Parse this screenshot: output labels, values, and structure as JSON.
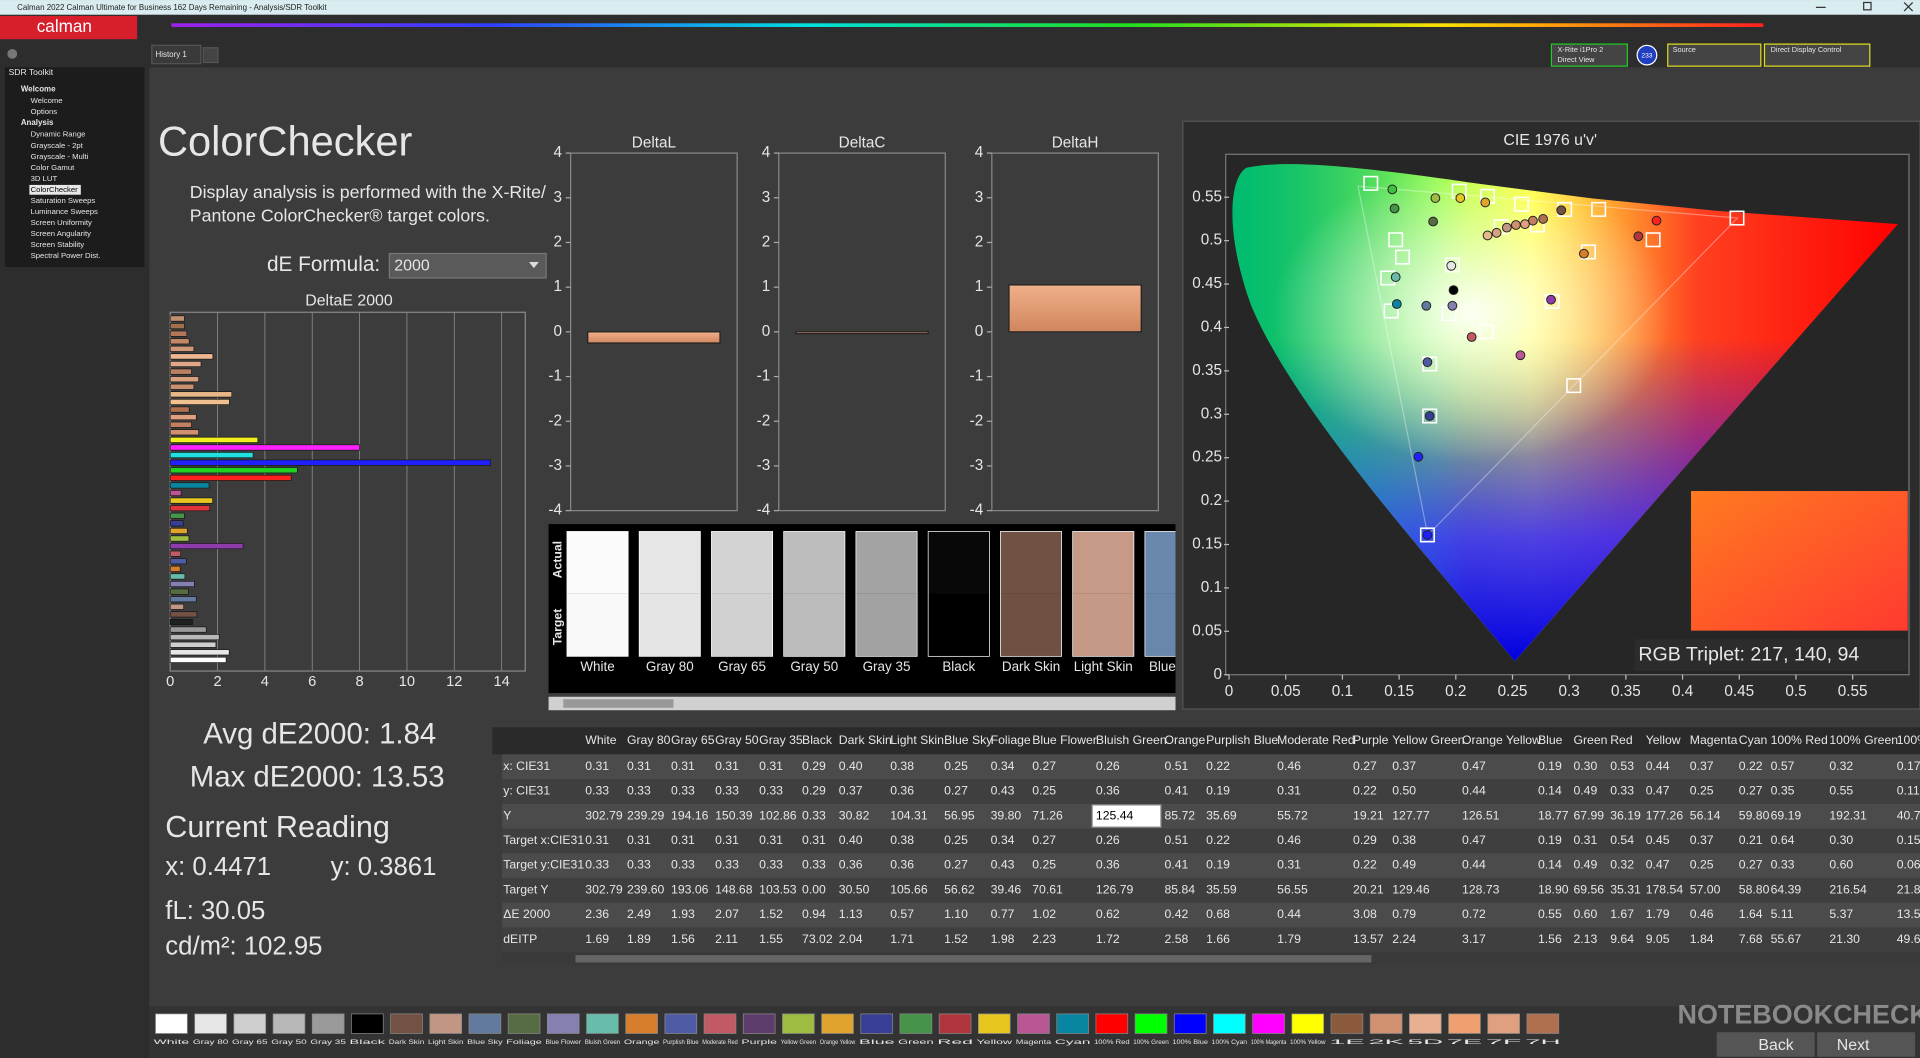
{
  "window": {
    "title": "Calman 2022 Calman Ultimate for Business 162 Days Remaining - Analysis/SDR Toolkit",
    "logo": "calman",
    "tab": "History 1"
  },
  "devices": {
    "meter": "X-Rite i1Pro 2",
    "meter_mode": "Direct View",
    "badge": "233",
    "source": "Source",
    "display": "Direct Display Control"
  },
  "sidebar": {
    "title": "SDR Toolkit",
    "groups": [
      {
        "title": "Welcome",
        "items": [
          "Welcome",
          "Options"
        ]
      },
      {
        "title": "Analysis",
        "items": [
          "Dynamic Range",
          "Grayscale - 2pt",
          "Grayscale - Multi",
          "Color Gamut",
          "3D LUT",
          "ColorChecker",
          "Saturation Sweeps",
          "Luminance Sweeps",
          "Screen Uniformity",
          "Screen Angularity",
          "Screen Stability",
          "Spectral Power Dist."
        ]
      }
    ],
    "selected": [
      1,
      5
    ]
  },
  "header": {
    "title": "ColorChecker",
    "description": [
      "Display analysis is performed with the X-Rite/",
      "Pantone ColorChecker® target colors."
    ],
    "formula_label": "dE Formula:",
    "formula_value": "2000"
  },
  "deltae_chart": {
    "type": "hbar",
    "title": "DeltaE 2000",
    "xlim": [
      0,
      15
    ],
    "xticks": [
      0,
      2,
      4,
      6,
      8,
      10,
      12,
      14
    ],
    "values": [
      2.36,
      2.49,
      1.93,
      2.07,
      1.52,
      0.94,
      1.13,
      0.57,
      1.1,
      0.77,
      1.02,
      0.62,
      0.42,
      0.68,
      0.44,
      3.08,
      0.79,
      0.72,
      0.55,
      0.6,
      1.67,
      1.79,
      0.46,
      1.64,
      5.11,
      5.37,
      13.53,
      3.5,
      8.0,
      3.7,
      1.2,
      0.9,
      1.1,
      0.8,
      2.5,
      2.6,
      1.0,
      1.2,
      0.9,
      1.3,
      1.8,
      1.0,
      0.8,
      0.7,
      0.6,
      0.6
    ],
    "colors": [
      "#ffffff",
      "#e6e6e6",
      "#cfcfcf",
      "#b8b8b8",
      "#9a9a9a",
      "#202020",
      "#735244",
      "#c29682",
      "#627a9d",
      "#576c43",
      "#8580b1",
      "#67bdaa",
      "#d67e2c",
      "#505ba6",
      "#c15a63",
      "#8e3cac",
      "#9dbc40",
      "#e0a32e",
      "#383d96",
      "#469449",
      "#df363c",
      "#e7c71f",
      "#bb5695",
      "#0885a1",
      "#ff2020",
      "#20d020",
      "#2020ff",
      "#20e0e0",
      "#ff20ff",
      "#f0f020",
      "#d09070",
      "#c08060",
      "#e0a080",
      "#b07050",
      "#f0c090",
      "#e8b888",
      "#c89070",
      "#d8a080",
      "#b88060",
      "#e0a888",
      "#f0b890",
      "#d09878",
      "#c08868",
      "#b07858",
      "#a07050",
      "#c09070"
    ]
  },
  "delta_charts": {
    "type": "bar",
    "ylim": [
      -4,
      4
    ],
    "yticks": [
      -4,
      -3,
      -2,
      -1,
      0,
      1,
      2,
      3,
      4
    ],
    "color": "#e29a72",
    "charts": [
      {
        "title": "DeltaL",
        "value": -0.25
      },
      {
        "title": "DeltaC",
        "value": -0.04
      },
      {
        "title": "DeltaH",
        "value": 1.05
      }
    ]
  },
  "swatches": {
    "row_labels": [
      "Actual",
      "Target"
    ],
    "items": [
      {
        "name": "White",
        "actual": "#fbfbfb",
        "target": "#f9f9f9"
      },
      {
        "name": "Gray 80",
        "actual": "#e6e6e6",
        "target": "#e5e5e5"
      },
      {
        "name": "Gray 65",
        "actual": "#d3d3d3",
        "target": "#d1d1d1"
      },
      {
        "name": "Gray 50",
        "actual": "#bdbdbd",
        "target": "#bcbcbc"
      },
      {
        "name": "Gray 35",
        "actual": "#a3a3a3",
        "target": "#a2a2a2"
      },
      {
        "name": "Black",
        "actual": "#080808",
        "target": "#000000"
      },
      {
        "name": "Dark Skin",
        "actual": "#6f5244",
        "target": "#6e5143"
      },
      {
        "name": "Light Skin",
        "actual": "#c69a87",
        "target": "#c59986"
      },
      {
        "name": "Blue Sky",
        "actual": "#6a88ad",
        "target": "#6987ac"
      }
    ]
  },
  "cie_chart": {
    "type": "scatter",
    "title": "CIE 1976 u'v'",
    "xlim": [
      0,
      0.6
    ],
    "ylim": [
      0,
      0.6
    ],
    "xticks": [
      0,
      0.05,
      0.1,
      0.15,
      0.2,
      0.25,
      0.3,
      0.35,
      0.4,
      0.45,
      0.5,
      0.55
    ],
    "yticks": [
      0,
      0.05,
      0.1,
      0.15,
      0.2,
      0.25,
      0.3,
      0.35,
      0.4,
      0.45,
      0.5,
      0.55
    ],
    "targets": {
      "u": [
        0.125,
        0.203,
        0.228,
        0.258,
        0.296,
        0.326,
        0.147,
        0.153,
        0.197,
        0.317,
        0.374,
        0.448,
        0.14,
        0.143,
        0.194,
        0.227,
        0.285,
        0.177,
        0.177,
        0.304,
        0.175,
        0.24,
        0.272
      ],
      "v": [
        0.566,
        0.557,
        0.551,
        0.542,
        0.536,
        0.536,
        0.501,
        0.481,
        0.472,
        0.487,
        0.501,
        0.526,
        0.457,
        0.419,
        0.416,
        0.395,
        0.43,
        0.358,
        0.298,
        0.333,
        0.161,
        0.516,
        0.518
      ]
    },
    "actuals": {
      "u": [
        0.144,
        0.146,
        0.182,
        0.204,
        0.226,
        0.18,
        0.196,
        0.198,
        0.147,
        0.148,
        0.174,
        0.197,
        0.214,
        0.257,
        0.284,
        0.313,
        0.361,
        0.377,
        0.175,
        0.177,
        0.167,
        0.175,
        0.228,
        0.236,
        0.245,
        0.253,
        0.261,
        0.268,
        0.277,
        0.293
      ],
      "v": [
        0.559,
        0.537,
        0.549,
        0.549,
        0.544,
        0.522,
        0.471,
        0.443,
        0.458,
        0.427,
        0.425,
        0.425,
        0.389,
        0.368,
        0.432,
        0.485,
        0.505,
        0.523,
        0.36,
        0.298,
        0.251,
        0.161,
        0.506,
        0.509,
        0.515,
        0.518,
        0.519,
        0.523,
        0.525,
        0.535
      ],
      "colors": [
        "#40c040",
        "#469449",
        "#9dbc40",
        "#e7c71f",
        "#e0a32e",
        "#576c43",
        "#e6e6e6",
        "#000000",
        "#67bdaa",
        "#0885a1",
        "#627a9d",
        "#8580b1",
        "#c15a63",
        "#bb5695",
        "#8e3cac",
        "#d67e2c",
        "#af363c",
        "#ff2020",
        "#505ba6",
        "#383d96",
        "#2020ff",
        "#2020ff",
        "#e8b888",
        "#d8a080",
        "#c29682",
        "#d09070",
        "#e0a080",
        "#c08060",
        "#b07050",
        "#735244"
      ]
    },
    "rgb_triplet": "RGB Triplet: 217, 140, 94"
  },
  "table": {
    "columns": [
      "White",
      "Gray 80",
      "Gray 65",
      "Gray 50",
      "Gray 35",
      "Black",
      "Dark Skin",
      "Light Skin",
      "Blue Sky",
      "Foliage",
      "Blue Flower",
      "Bluish Green",
      "Orange",
      "Purplish Blue",
      "Moderate Red",
      "Purple",
      "Yellow Green",
      "Orange Yellow",
      "Blue",
      "Green",
      "Red",
      "Yellow",
      "Magenta",
      "Cyan",
      "100% Red",
      "100% Green",
      "100%"
    ],
    "rows": [
      {
        "label": "x: CIE31",
        "cells": [
          "0.31",
          "0.31",
          "0.31",
          "0.31",
          "0.31",
          "0.29",
          "0.40",
          "0.38",
          "0.25",
          "0.34",
          "0.27",
          "0.26",
          "0.51",
          "0.22",
          "0.46",
          "0.27",
          "0.37",
          "0.47",
          "0.19",
          "0.30",
          "0.53",
          "0.44",
          "0.37",
          "0.22",
          "0.57",
          "0.32",
          "0.17"
        ]
      },
      {
        "label": "y: CIE31",
        "cells": [
          "0.33",
          "0.33",
          "0.33",
          "0.33",
          "0.33",
          "0.29",
          "0.37",
          "0.36",
          "0.27",
          "0.43",
          "0.25",
          "0.36",
          "0.41",
          "0.19",
          "0.31",
          "0.22",
          "0.50",
          "0.44",
          "0.14",
          "0.49",
          "0.33",
          "0.47",
          "0.25",
          "0.27",
          "0.35",
          "0.55",
          "0.11"
        ]
      },
      {
        "label": "Y",
        "cells": [
          "302.79",
          "239.29",
          "194.16",
          "150.39",
          "102.86",
          "0.33",
          "30.82",
          "104.31",
          "56.95",
          "39.80",
          "71.26",
          "125.44",
          "85.72",
          "35.69",
          "55.72",
          "19.21",
          "127.77",
          "126.51",
          "18.77",
          "67.99",
          "36.19",
          "177.26",
          "56.14",
          "59.80",
          "69.19",
          "192.31",
          "40.7"
        ]
      },
      {
        "label": "Target x:CIE31",
        "cells": [
          "0.31",
          "0.31",
          "0.31",
          "0.31",
          "0.31",
          "0.31",
          "0.40",
          "0.38",
          "0.25",
          "0.34",
          "0.27",
          "0.26",
          "0.51",
          "0.22",
          "0.46",
          "0.29",
          "0.38",
          "0.47",
          "0.19",
          "0.31",
          "0.54",
          "0.45",
          "0.37",
          "0.21",
          "0.64",
          "0.30",
          "0.15"
        ]
      },
      {
        "label": "Target y:CIE31",
        "cells": [
          "0.33",
          "0.33",
          "0.33",
          "0.33",
          "0.33",
          "0.33",
          "0.36",
          "0.36",
          "0.27",
          "0.43",
          "0.25",
          "0.36",
          "0.41",
          "0.19",
          "0.31",
          "0.22",
          "0.49",
          "0.44",
          "0.14",
          "0.49",
          "0.32",
          "0.47",
          "0.25",
          "0.27",
          "0.33",
          "0.60",
          "0.06"
        ]
      },
      {
        "label": "Target Y",
        "cells": [
          "302.79",
          "239.60",
          "193.06",
          "148.68",
          "103.53",
          "0.00",
          "30.50",
          "105.66",
          "56.62",
          "39.46",
          "70.61",
          "126.79",
          "85.84",
          "35.59",
          "56.55",
          "20.21",
          "129.46",
          "128.73",
          "18.90",
          "69.56",
          "35.31",
          "178.54",
          "57.00",
          "58.80",
          "64.39",
          "216.54",
          "21.8"
        ]
      },
      {
        "label": "ΔE 2000",
        "cells": [
          "2.36",
          "2.49",
          "1.93",
          "2.07",
          "1.52",
          "0.94",
          "1.13",
          "0.57",
          "1.10",
          "0.77",
          "1.02",
          "0.62",
          "0.42",
          "0.68",
          "0.44",
          "3.08",
          "0.79",
          "0.72",
          "0.55",
          "0.60",
          "1.67",
          "1.79",
          "0.46",
          "1.64",
          "5.11",
          "5.37",
          "13.5"
        ]
      },
      {
        "label": "dEITP",
        "cells": [
          "1.69",
          "1.89",
          "1.56",
          "2.11",
          "1.55",
          "73.02",
          "2.04",
          "1.71",
          "1.52",
          "1.98",
          "2.23",
          "1.72",
          "2.58",
          "1.66",
          "1.79",
          "13.57",
          "2.24",
          "3.17",
          "1.56",
          "2.13",
          "9.64",
          "9.05",
          "1.84",
          "7.68",
          "55.67",
          "21.30",
          "49.6"
        ]
      }
    ],
    "selected_cell": [
      2,
      11
    ]
  },
  "readings": {
    "avg": "Avg dE2000: 1.84",
    "max": "Max dE2000: 13.53",
    "heading": "Current Reading",
    "x": "x: 0.4471",
    "y": "y: 0.3861",
    "fl": "fL: 30.05",
    "cdm2": "cd/m²: 102.95"
  },
  "palette": [
    {
      "name": "White",
      "color": "#ffffff"
    },
    {
      "name": "Gray 80",
      "color": "#e6e6e6"
    },
    {
      "name": "Gray 65",
      "color": "#cfcfcf"
    },
    {
      "name": "Gray 50",
      "color": "#b8b8b8"
    },
    {
      "name": "Gray 35",
      "color": "#9a9a9a"
    },
    {
      "name": "Black",
      "color": "#000000"
    },
    {
      "name": "Dark Skin",
      "color": "#735244"
    },
    {
      "name": "Light Skin",
      "color": "#c29682"
    },
    {
      "name": "Blue Sky",
      "color": "#627a9d"
    },
    {
      "name": "Foliage",
      "color": "#576c43"
    },
    {
      "name": "Blue Flower",
      "color": "#8580b1"
    },
    {
      "name": "Bluish Green",
      "color": "#67bdaa"
    },
    {
      "name": "Orange",
      "color": "#d67e2c"
    },
    {
      "name": "Purplish Blue",
      "color": "#505ba6"
    },
    {
      "name": "Moderate Red",
      "color": "#c15a63"
    },
    {
      "name": "Purple",
      "color": "#5e3c6c"
    },
    {
      "name": "Yellow Green",
      "color": "#9dbc40"
    },
    {
      "name": "Orange Yellow",
      "color": "#e0a32e"
    },
    {
      "name": "Blue",
      "color": "#383d96"
    },
    {
      "name": "Green",
      "color": "#469449"
    },
    {
      "name": "Red",
      "color": "#af363c"
    },
    {
      "name": "Yellow",
      "color": "#e7c71f"
    },
    {
      "name": "Magenta",
      "color": "#bb5695"
    },
    {
      "name": "Cyan",
      "color": "#0885a1"
    },
    {
      "name": "100% Red",
      "color": "#ff0000"
    },
    {
      "name": "100% Green",
      "color": "#00ff00"
    },
    {
      "name": "100% Blue",
      "color": "#0000ff"
    },
    {
      "name": "100% Cyan",
      "color": "#00ffff"
    },
    {
      "name": "100% Magenta",
      "color": "#ff00ff"
    },
    {
      "name": "100% Yellow",
      "color": "#ffff00"
    },
    {
      "name": "1E",
      "color": "#8b5a3c"
    },
    {
      "name": "2K",
      "color": "#d19070"
    },
    {
      "name": "5D",
      "color": "#e8b090"
    },
    {
      "name": "7E",
      "color": "#f0a070"
    },
    {
      "name": "7F",
      "color": "#e0a080"
    },
    {
      "name": "7H",
      "color": "#b07050"
    }
  ],
  "buttons": {
    "back": "Back",
    "next": "Next"
  },
  "watermark": "NOTEBOOKCHECK"
}
